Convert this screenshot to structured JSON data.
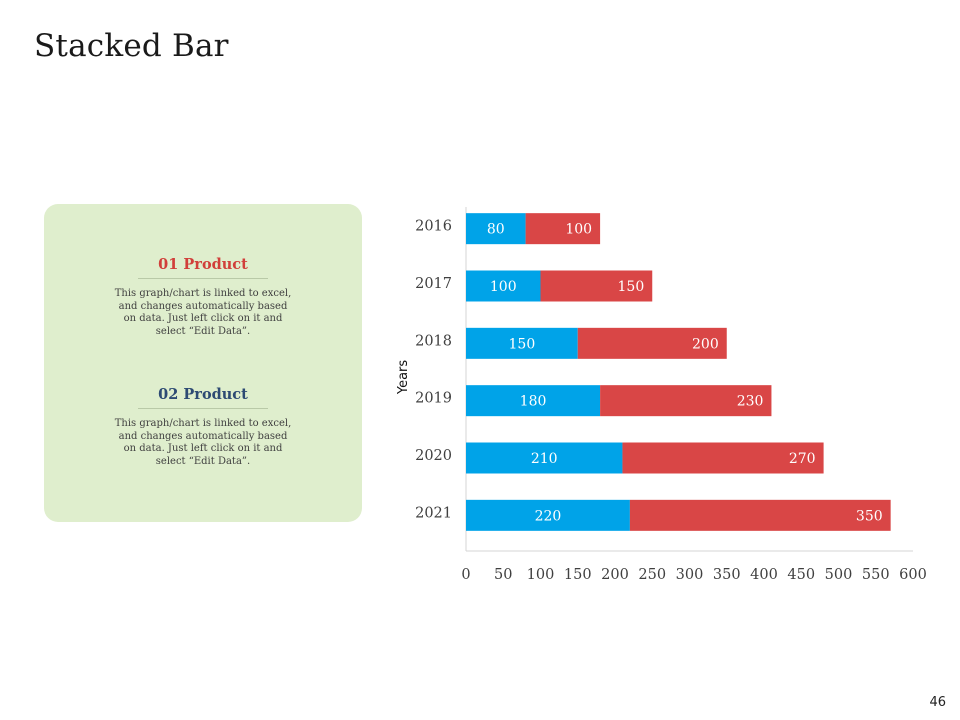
{
  "page": {
    "title": "Stacked Bar",
    "page_number": "46"
  },
  "side_panel": {
    "products": [
      {
        "title": "01 Product",
        "description": "This graph/chart is linked to excel, and changes automatically based on data. Just left click on it and select “Edit Data”."
      },
      {
        "title": "02 Product",
        "description": "This graph/chart is linked to excel, and changes automatically based on data. Just left click on it and select “Edit Data”."
      }
    ]
  },
  "colors": {
    "product1": "#d13f3a",
    "product2": "#2d4a73",
    "series1": "#00a3e8",
    "series2": "#d94646",
    "panel_bg": "#dfeecd"
  },
  "chart_data": {
    "type": "bar",
    "orientation": "horizontal",
    "stacked": true,
    "categories": [
      "2016",
      "2017",
      "2018",
      "2019",
      "2020",
      "2021"
    ],
    "series": [
      {
        "values": [
          80,
          100,
          150,
          180,
          210,
          220
        ]
      },
      {
        "values": [
          100,
          150,
          200,
          230,
          270,
          350
        ]
      }
    ],
    "xlabel": "",
    "ylabel": "Years",
    "xlim": [
      0,
      600
    ],
    "x_ticks": [
      0,
      50,
      100,
      150,
      200,
      250,
      300,
      350,
      400,
      450,
      500,
      550,
      600
    ],
    "grid": false,
    "legend": "none"
  }
}
